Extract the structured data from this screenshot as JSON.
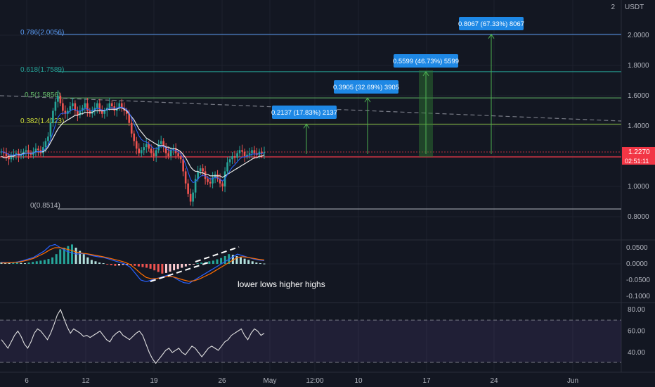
{
  "chart_data": [
    {
      "type": "line",
      "pane": "price",
      "title": "",
      "currency": "USDT",
      "yaxis_ticks": [
        "2",
        "2.0000",
        "1.8000",
        "1.6000",
        "1.4000",
        "1.2000",
        "1.0000",
        "0.8000"
      ],
      "ylim": [
        0.75,
        2.1
      ],
      "last_price": "1.2270",
      "countdown": "02:51:11",
      "fib_levels": [
        {
          "label": "0.786(2.0056)",
          "value": 2.0056,
          "color": "#5b9cf6"
        },
        {
          "label": "0.618(1.7589)",
          "value": 1.7589,
          "color": "#26a69a"
        },
        {
          "label": "0.5(1.5856)",
          "value": 1.5856,
          "color": "#66bb6a"
        },
        {
          "label": "0.382(1.4123)",
          "value": 1.4123,
          "color": "#8bc34a"
        },
        {
          "label": "0(0.8514)",
          "value": 0.8514,
          "color": "#b2b5be"
        }
      ],
      "targets": [
        {
          "label": "0.2137 (17.83%) 2137",
          "value": 1.4123
        },
        {
          "label": "0.3905 (32.69%) 3905",
          "value": 1.5856
        },
        {
          "label": "0.5599 (46.73%) 5599",
          "value": 1.7589
        },
        {
          "label": "0.8067 (67.33%) 8067",
          "value": 2.0056
        }
      ],
      "close_series": [
        1.23,
        1.22,
        1.2,
        1.18,
        1.2,
        1.21,
        1.22,
        1.2,
        1.21,
        1.23,
        1.24,
        1.22,
        1.21,
        1.23,
        1.25,
        1.24,
        1.22,
        1.26,
        1.3,
        1.33,
        1.42,
        1.5,
        1.56,
        1.6,
        1.55,
        1.5,
        1.48,
        1.5,
        1.53,
        1.55,
        1.5,
        1.47,
        1.5,
        1.52,
        1.55,
        1.5,
        1.48,
        1.5,
        1.52,
        1.55,
        1.5,
        1.48,
        1.5,
        1.52,
        1.55,
        1.53,
        1.5,
        1.52,
        1.55,
        1.52,
        1.5,
        1.48,
        1.42,
        1.35,
        1.3,
        1.25,
        1.22,
        1.24,
        1.26,
        1.28,
        1.25,
        1.22,
        1.2,
        1.24,
        1.28,
        1.3,
        1.26,
        1.22,
        1.2,
        1.24,
        1.25,
        1.22,
        1.2,
        1.18,
        1.1,
        1.02,
        0.95,
        0.9,
        0.96,
        1.05,
        1.1,
        1.12,
        1.1,
        1.05,
        1.03,
        1.02,
        1.06,
        1.08,
        1.05,
        1.02,
        1.0,
        1.1,
        1.16,
        1.18,
        1.2,
        1.19,
        1.22,
        1.24,
        1.23,
        1.2,
        1.21,
        1.22,
        1.24,
        1.22,
        1.21,
        1.23,
        1.22,
        1.227
      ],
      "ma_series": [
        1.2,
        1.19,
        1.19,
        1.2,
        1.2,
        1.2,
        1.21,
        1.21,
        1.21,
        1.22,
        1.22,
        1.22,
        1.22,
        1.22,
        1.23,
        1.23,
        1.23,
        1.23,
        1.24,
        1.26,
        1.29,
        1.32,
        1.35,
        1.38,
        1.4,
        1.42,
        1.43,
        1.44,
        1.45,
        1.46,
        1.47,
        1.47,
        1.48,
        1.48,
        1.49,
        1.49,
        1.49,
        1.49,
        1.5,
        1.5,
        1.5,
        1.5,
        1.5,
        1.51,
        1.51,
        1.51,
        1.51,
        1.51,
        1.52,
        1.52,
        1.51,
        1.5,
        1.48,
        1.46,
        1.44,
        1.41,
        1.38,
        1.36,
        1.34,
        1.32,
        1.31,
        1.3,
        1.29,
        1.28,
        1.27,
        1.27,
        1.27,
        1.26,
        1.26,
        1.25,
        1.25,
        1.25,
        1.24,
        1.23,
        1.21,
        1.19,
        1.16,
        1.13,
        1.11,
        1.1,
        1.1,
        1.09,
        1.09,
        1.08,
        1.08,
        1.07,
        1.07,
        1.07,
        1.07,
        1.07,
        1.06,
        1.07,
        1.08,
        1.09,
        1.1,
        1.11,
        1.12,
        1.13,
        1.14,
        1.15,
        1.16,
        1.17,
        1.18,
        1.19,
        1.19,
        1.2,
        1.2,
        1.21
      ],
      "trendline": {
        "from": {
          "x": 0,
          "y": 1.575
        },
        "to": {
          "x": 932,
          "y": 1.42
        }
      }
    },
    {
      "type": "bar",
      "pane": "macd",
      "yaxis_ticks": [
        "0.0500",
        "0.0000",
        "-0.0500",
        "-0.1000"
      ],
      "ylim": [
        -0.11,
        0.065
      ],
      "annotation": "lower lows higher highs",
      "histogram": [
        0.005,
        0.004,
        0.003,
        0.004,
        0.005,
        0.003,
        0.002,
        0.004,
        0.006,
        0.008,
        0.01,
        0.012,
        0.015,
        0.02,
        0.03,
        0.045,
        0.05,
        0.055,
        0.06,
        0.05,
        0.04,
        0.03,
        0.02,
        0.012,
        0.008,
        0.004,
        0.002,
        -0.002,
        -0.004,
        -0.006,
        -0.005,
        -0.003,
        -0.002,
        -0.004,
        -0.006,
        -0.008,
        -0.01,
        -0.012,
        -0.015,
        -0.02,
        -0.025,
        -0.03,
        -0.028,
        -0.024,
        -0.02,
        -0.016,
        -0.012,
        -0.008,
        -0.004,
        -0.002,
        0.002,
        0.004,
        0.006,
        0.008,
        0.01,
        0.014,
        0.018,
        0.024,
        0.03,
        0.028,
        0.024,
        0.02,
        0.016,
        0.012,
        0.008,
        0.004,
        0.002,
        0.001
      ],
      "macd_line": [
        0.005,
        0.004,
        0.004,
        0.006,
        0.01,
        0.015,
        0.02,
        0.03,
        0.04,
        0.055,
        0.06,
        0.05,
        0.04,
        0.035,
        0.03,
        0.032,
        0.03,
        0.025,
        0.022,
        0.02,
        0.015,
        0.01,
        0.005,
        0,
        -0.01,
        -0.03,
        -0.05,
        -0.055,
        -0.05,
        -0.045,
        -0.04,
        -0.035,
        -0.04,
        -0.05,
        -0.058,
        -0.06,
        -0.05,
        -0.04,
        -0.03,
        -0.02,
        -0.01,
        0,
        0.01,
        0.02,
        0.03,
        0.025,
        0.02,
        0.015,
        0.012,
        0.01
      ],
      "signal_line": [
        0.003,
        0.003,
        0.004,
        0.005,
        0.008,
        0.012,
        0.017,
        0.025,
        0.033,
        0.043,
        0.05,
        0.05,
        0.046,
        0.042,
        0.036,
        0.033,
        0.031,
        0.028,
        0.025,
        0.022,
        0.018,
        0.014,
        0.01,
        0.005,
        -0.002,
        -0.015,
        -0.03,
        -0.042,
        -0.046,
        -0.045,
        -0.042,
        -0.039,
        -0.04,
        -0.045,
        -0.05,
        -0.054,
        -0.052,
        -0.046,
        -0.038,
        -0.03,
        -0.02,
        -0.01,
        0,
        0.01,
        0.02,
        0.022,
        0.02,
        0.017,
        0.014,
        0.012
      ]
    },
    {
      "type": "line",
      "pane": "rsi",
      "yaxis_ticks": [
        "80.00",
        "60.00",
        "40.00"
      ],
      "ylim": [
        27,
        86
      ],
      "bands": [
        30,
        70
      ],
      "values": [
        52,
        48,
        44,
        50,
        56,
        60,
        55,
        48,
        44,
        50,
        58,
        62,
        60,
        56,
        52,
        58,
        66,
        75,
        80,
        72,
        64,
        58,
        62,
        60,
        58,
        55,
        56,
        54,
        56,
        58,
        60,
        56,
        52,
        50,
        55,
        58,
        60,
        56,
        54,
        52,
        55,
        58,
        60,
        56,
        48,
        40,
        34,
        30,
        34,
        38,
        42,
        44,
        40,
        42,
        44,
        40,
        38,
        42,
        46,
        44,
        40,
        36,
        40,
        44,
        46,
        44,
        42,
        46,
        50,
        52,
        56,
        58,
        60,
        62,
        56,
        52,
        58,
        62,
        60,
        56,
        58
      ]
    }
  ],
  "xaxis_ticks": [
    "6",
    "12",
    "19",
    "26",
    "May",
    "12:00",
    "10",
    "17",
    "24",
    "Jun"
  ]
}
